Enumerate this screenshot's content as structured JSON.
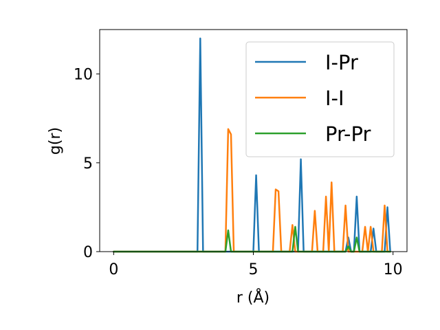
{
  "chart_data": {
    "type": "line",
    "xlabel": "r (Å)",
    "ylabel": "g(r)",
    "xlim": [
      -0.5,
      10.5
    ],
    "ylim": [
      0,
      12.5
    ],
    "x_ticks": [
      0,
      5,
      10
    ],
    "y_ticks": [
      0,
      5,
      10
    ],
    "grid": false,
    "legend_position": "top-right",
    "x": [
      0.0,
      0.1,
      0.2,
      0.3,
      0.4,
      0.5,
      0.6,
      0.7,
      0.8,
      0.9,
      1.0,
      1.1,
      1.2,
      1.3,
      1.4,
      1.5,
      1.6,
      1.7,
      1.8,
      1.9,
      2.0,
      2.1,
      2.2,
      2.3,
      2.4,
      2.5,
      2.6,
      2.7,
      2.8,
      2.9,
      3.0,
      3.1,
      3.2,
      3.3,
      3.4,
      3.5,
      3.6,
      3.7,
      3.8,
      3.9,
      4.0,
      4.1,
      4.2,
      4.3,
      4.4,
      4.5,
      4.6,
      4.7,
      4.8,
      4.9,
      5.0,
      5.1,
      5.2,
      5.3,
      5.4,
      5.5,
      5.6,
      5.7,
      5.8,
      5.9,
      6.0,
      6.1,
      6.2,
      6.3,
      6.4,
      6.5,
      6.6,
      6.7,
      6.8,
      6.9,
      7.0,
      7.1,
      7.2,
      7.3,
      7.4,
      7.5,
      7.6,
      7.7,
      7.8,
      7.9,
      8.0,
      8.1,
      8.2,
      8.3,
      8.4,
      8.5,
      8.6,
      8.7,
      8.8,
      8.9,
      9.0,
      9.1,
      9.2,
      9.3,
      9.4,
      9.5,
      9.6,
      9.7,
      9.8,
      9.9
    ],
    "series": [
      {
        "name": "I-Pr",
        "color": "#1f77b4",
        "values": [
          0,
          0,
          0,
          0,
          0,
          0,
          0,
          0,
          0,
          0,
          0,
          0,
          0,
          0,
          0,
          0,
          0,
          0,
          0,
          0,
          0,
          0,
          0,
          0,
          0,
          0,
          0,
          0,
          0,
          0,
          0,
          12.0,
          0,
          0,
          0,
          0,
          0,
          0,
          0,
          0,
          0,
          0,
          0,
          0,
          0,
          0,
          0,
          0,
          0,
          0,
          0,
          4.3,
          0,
          0,
          0,
          0,
          0,
          0,
          0,
          0,
          0,
          0,
          0,
          0,
          0,
          0,
          0,
          5.2,
          0,
          0,
          0,
          0,
          0,
          0,
          0,
          0,
          0,
          0,
          0,
          0,
          0,
          0,
          0,
          0,
          0.8,
          0,
          0,
          3.1,
          0,
          0,
          0,
          0,
          0,
          1.3,
          0,
          0,
          0,
          0,
          2.5,
          0
        ]
      },
      {
        "name": "I-I",
        "color": "#ff7f0e",
        "values": [
          0,
          0,
          0,
          0,
          0,
          0,
          0,
          0,
          0,
          0,
          0,
          0,
          0,
          0,
          0,
          0,
          0,
          0,
          0,
          0,
          0,
          0,
          0,
          0,
          0,
          0,
          0,
          0,
          0,
          0,
          0,
          0,
          0,
          0,
          0,
          0,
          0,
          0,
          0,
          0,
          0,
          6.9,
          6.6,
          0,
          0,
          0,
          0,
          0,
          0,
          0,
          0,
          0,
          0,
          0,
          0,
          0,
          0,
          0,
          3.5,
          3.4,
          0,
          0,
          0,
          0,
          1.5,
          0,
          0,
          0,
          0,
          0,
          0,
          0,
          2.3,
          0,
          0,
          0,
          3.1,
          0,
          3.9,
          0,
          0,
          0,
          0,
          2.6,
          0,
          0,
          0,
          0,
          0,
          0,
          1.4,
          0,
          1.4,
          0,
          0,
          0,
          0,
          2.6,
          0,
          0
        ]
      },
      {
        "name": "Pr-Pr",
        "color": "#2ca02c",
        "values": [
          0,
          0,
          0,
          0,
          0,
          0,
          0,
          0,
          0,
          0,
          0,
          0,
          0,
          0,
          0,
          0,
          0,
          0,
          0,
          0,
          0,
          0,
          0,
          0,
          0,
          0,
          0,
          0,
          0,
          0,
          0,
          0,
          0,
          0,
          0,
          0,
          0,
          0,
          0,
          0,
          0,
          1.2,
          0,
          0,
          0,
          0,
          0,
          0,
          0,
          0,
          0,
          0,
          0,
          0,
          0,
          0,
          0,
          0,
          0,
          0,
          0,
          0,
          0,
          0,
          0,
          1.4,
          0,
          0,
          0,
          0,
          0,
          0,
          0,
          0,
          0,
          0,
          0,
          0,
          0,
          0,
          0,
          0,
          0,
          0,
          0.3,
          0,
          0,
          0.8,
          0,
          0,
          0,
          0,
          0,
          0,
          0,
          0,
          0,
          0,
          0,
          0
        ]
      }
    ]
  }
}
